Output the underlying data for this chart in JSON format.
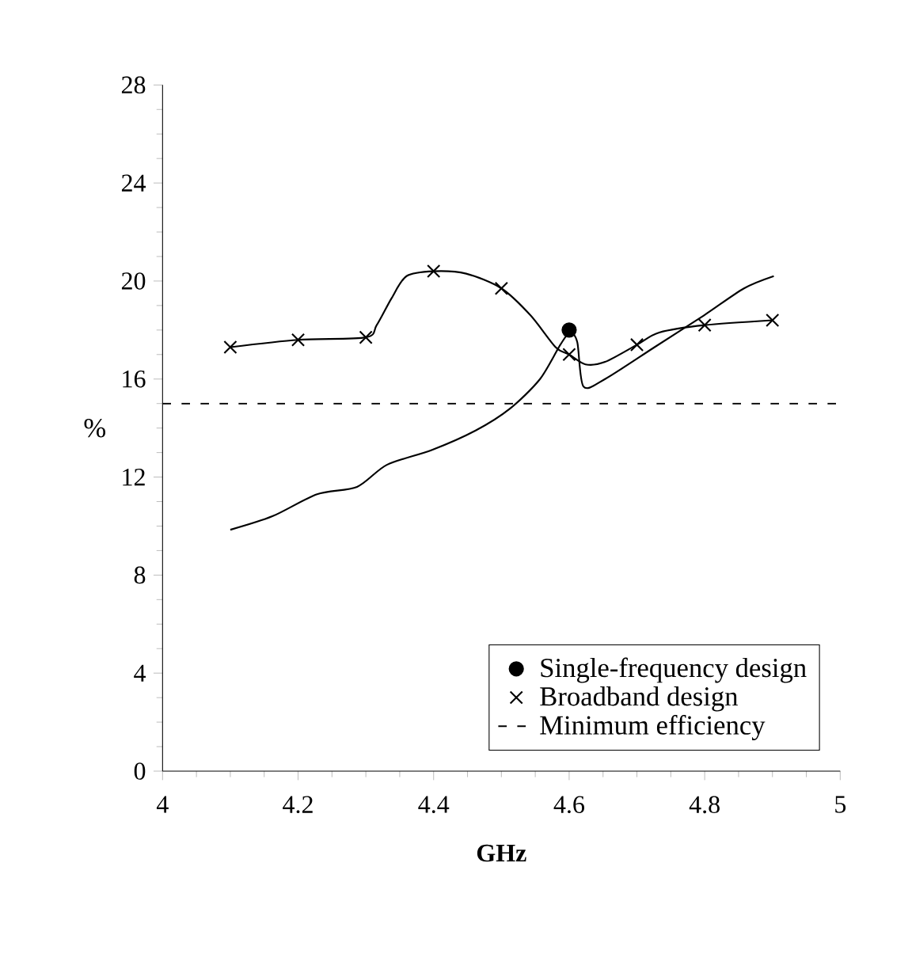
{
  "chart_data": {
    "type": "line",
    "xlabel": "GHz",
    "ylabel": "%",
    "xlim": [
      4,
      5
    ],
    "xticks": [
      4,
      4.2,
      4.4,
      4.6,
      4.8,
      5
    ],
    "ylim": [
      0,
      28
    ],
    "yticks": [
      0,
      4,
      8,
      12,
      16,
      20,
      24,
      28
    ],
    "grid": false,
    "legend": "bottom right",
    "series": [
      {
        "color": "#000000",
        "marker": "none",
        "x": [
          4.1,
          4.162,
          4.228,
          4.287,
          4.331,
          4.397,
          4.462,
          4.513,
          4.557,
          4.587,
          4.601,
          4.612,
          4.621,
          4.653,
          4.726,
          4.799,
          4.858,
          4.902
        ],
        "values": [
          9.85,
          10.4,
          11.3,
          11.6,
          12.5,
          13.1,
          13.9,
          14.8,
          16.0,
          17.4,
          17.9,
          17.5,
          15.7,
          16.0,
          17.3,
          18.6,
          19.7,
          20.2
        ]
      },
      {
        "type": "scatter",
        "name": "Single-frequency design",
        "color": "#000000",
        "marker": "circle",
        "x": [
          4.6
        ],
        "values": [
          18.0
        ]
      },
      {
        "color": "#000000",
        "marker": "none",
        "x": [
          4.1,
          4.2,
          4.3,
          4.316,
          4.338,
          4.36,
          4.4,
          4.448,
          4.5,
          4.543,
          4.58,
          4.6,
          4.624,
          4.653,
          4.7,
          4.733,
          4.8,
          4.9
        ],
        "values": [
          17.3,
          17.6,
          17.7,
          18.2,
          19.3,
          20.2,
          20.4,
          20.3,
          19.7,
          18.6,
          17.3,
          17.0,
          16.6,
          16.7,
          17.4,
          17.9,
          18.2,
          18.4
        ]
      },
      {
        "type": "scatter",
        "name": "Broadband design",
        "color": "#000000",
        "marker": "cross",
        "x": [
          4.1,
          4.2,
          4.3,
          4.4,
          4.5,
          4.6,
          4.7,
          4.8,
          4.9
        ],
        "values": [
          17.3,
          17.6,
          17.7,
          20.4,
          19.7,
          17.0,
          17.4,
          18.2,
          18.4
        ]
      }
    ],
    "ref_lines": [
      {
        "axis": "y",
        "value": 15,
        "label": "Minimum efficiency",
        "color": "#000000",
        "line_style": "dashed"
      }
    ]
  }
}
